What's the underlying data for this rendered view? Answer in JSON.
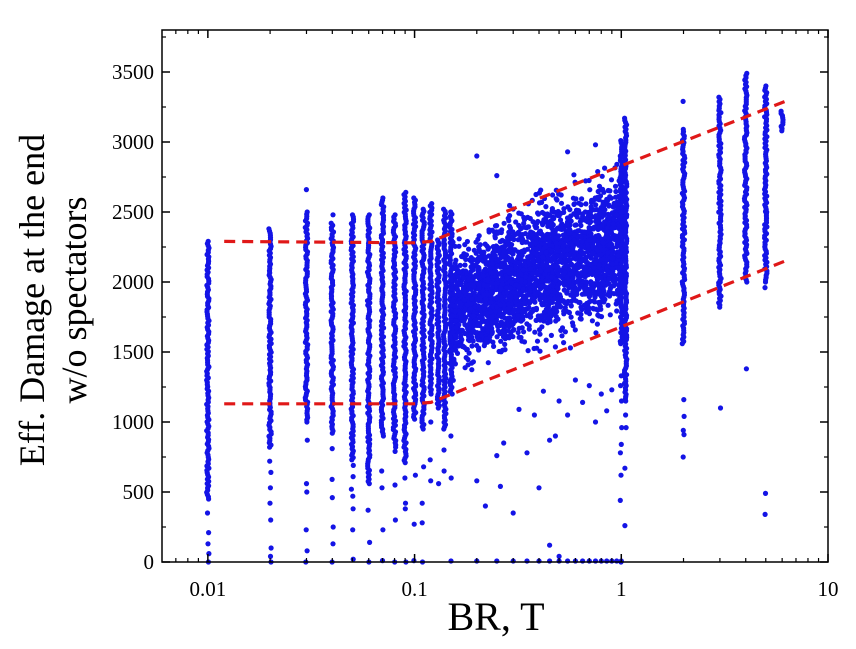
{
  "chart_data": {
    "type": "scatter",
    "title": "",
    "xlabel": "BR, T",
    "ylabel_lines": [
      "Eff. Damage at the end",
      "w/o spectators"
    ],
    "x_scale": "log",
    "xlim": [
      0.006,
      10
    ],
    "ylim": [
      0,
      3800
    ],
    "x_ticks": [
      {
        "value": 0.01,
        "label": "0.01"
      },
      {
        "value": 0.1,
        "label": "0.1"
      },
      {
        "value": 1,
        "label": "1"
      },
      {
        "value": 10,
        "label": "10"
      }
    ],
    "y_ticks": [
      {
        "value": 0,
        "label": "0"
      },
      {
        "value": 500,
        "label": "500"
      },
      {
        "value": 1000,
        "label": "1000"
      },
      {
        "value": 1500,
        "label": "1500"
      },
      {
        "value": 2000,
        "label": "2000"
      },
      {
        "value": 2500,
        "label": "2500"
      },
      {
        "value": 3000,
        "label": "3000"
      },
      {
        "value": 3500,
        "label": "3500"
      }
    ],
    "grid": false,
    "colors": {
      "points": "#1414e6",
      "envelope": "#e01818",
      "axis": "#000000"
    },
    "columns": [
      {
        "x": 0.01,
        "bands": [
          [
            450,
            2290
          ]
        ],
        "extra": [
          0,
          60,
          130,
          210,
          350
        ]
      },
      {
        "x": 0.02,
        "bands": [
          [
            820,
            2380
          ]
        ],
        "extra": [
          0,
          40,
          100,
          300,
          420,
          530,
          640,
          720
        ]
      },
      {
        "x": 0.03,
        "bands": [
          [
            1000,
            2500
          ]
        ],
        "extra": [
          0,
          80,
          230,
          500,
          560,
          870,
          2660
        ]
      },
      {
        "x": 0.04,
        "bands": [
          [
            920,
            2420
          ]
        ],
        "extra": [
          0,
          130,
          250,
          460,
          590,
          810,
          2480
        ]
      },
      {
        "x": 0.05,
        "bands": [
          [
            730,
            2480
          ]
        ],
        "extra": [
          20,
          230,
          380,
          470,
          520,
          610,
          690
        ]
      },
      {
        "x": 0.06,
        "bands": [
          [
            560,
            2480
          ]
        ],
        "extra": [
          0,
          140,
          370
        ]
      },
      {
        "x": 0.07,
        "bands": [
          [
            900,
            2600
          ]
        ],
        "extra": [
          10,
          230,
          530,
          650
        ]
      },
      {
        "x": 0.08,
        "bands": [
          [
            820,
            2480
          ]
        ],
        "extra": [
          0,
          300,
          550,
          790
        ]
      },
      {
        "x": 0.09,
        "bands": [
          [
            710,
            2640
          ]
        ],
        "extra": [
          0,
          380,
          420,
          600
        ]
      },
      {
        "x": 0.1,
        "bands": [
          [
            1020,
            2600
          ]
        ],
        "extra": [
          10,
          270,
          620
        ]
      },
      {
        "x": 0.11,
        "bands": [
          [
            950,
            2520
          ]
        ],
        "extra": [
          0,
          280,
          420,
          680
        ]
      },
      {
        "x": 0.12,
        "bands": [
          [
            1200,
            2560
          ]
        ],
        "extra": [
          580,
          730,
          1000
        ]
      },
      {
        "x": 0.13,
        "bands": [
          [
            1100,
            2300
          ]
        ],
        "extra": [
          560
        ]
      },
      {
        "x": 0.14,
        "bands": [
          [
            950,
            2520
          ]
        ],
        "extra": [
          650,
          800
        ]
      },
      {
        "x": 0.15,
        "bands": [
          [
            1200,
            2500
          ]
        ],
        "extra": [
          600,
          900
        ]
      },
      {
        "x": 1.0,
        "bands": [
          [
            1560,
            3010
          ],
          [
            1980,
            2820
          ]
        ],
        "extra": [
          440,
          620,
          780,
          840,
          960,
          1150,
          1260,
          1330,
          0
        ]
      },
      {
        "x": 1.05,
        "bands": [
          [
            1150,
            3170
          ]
        ],
        "extra": [
          260,
          670,
          960,
          1050,
          1270
        ]
      },
      {
        "x": 2.0,
        "bands": [
          [
            1560,
            3090
          ]
        ],
        "extra": [
          1160,
          1040,
          940,
          910,
          750,
          3290
        ]
      },
      {
        "x": 3.0,
        "bands": [
          [
            1820,
            3320
          ]
        ],
        "extra": [
          2000,
          1100
        ]
      },
      {
        "x": 4.0,
        "bands": [
          [
            2000,
            3490
          ]
        ],
        "extra": [
          1380
        ]
      },
      {
        "x": 5.0,
        "bands": [
          [
            2000,
            3400
          ]
        ],
        "extra": [
          340,
          490,
          1960,
          2500
        ]
      },
      {
        "x": 6.0,
        "bands": [
          [
            3080,
            3220
          ]
        ],
        "extra": []
      }
    ],
    "cloud": {
      "x_range": [
        0.15,
        1.0
      ],
      "upper_envelope": [
        [
          0.15,
          2350
        ],
        [
          0.3,
          2650
        ],
        [
          0.6,
          2860
        ],
        [
          1.0,
          2980
        ]
      ],
      "lower_envelope": [
        [
          0.15,
          1200
        ],
        [
          0.3,
          1350
        ],
        [
          0.6,
          1500
        ],
        [
          1.0,
          1600
        ]
      ],
      "outliers": [
        [
          0.2,
          580
        ],
        [
          0.22,
          400
        ],
        [
          0.25,
          760
        ],
        [
          0.27,
          850
        ],
        [
          0.3,
          350
        ],
        [
          0.32,
          1090
        ],
        [
          0.35,
          780
        ],
        [
          0.38,
          1050
        ],
        [
          0.4,
          530
        ],
        [
          0.42,
          1220
        ],
        [
          0.45,
          870
        ],
        [
          0.48,
          900
        ],
        [
          0.5,
          1150
        ],
        [
          0.55,
          1050
        ],
        [
          0.6,
          1300
        ],
        [
          0.65,
          1140
        ],
        [
          0.7,
          1260
        ],
        [
          0.75,
          1000
        ],
        [
          0.8,
          1200
        ],
        [
          0.85,
          1080
        ],
        [
          0.9,
          1230
        ],
        [
          0.2,
          2900
        ],
        [
          0.25,
          2760
        ],
        [
          0.55,
          2930
        ],
        [
          0.75,
          2980
        ],
        [
          0.45,
          120
        ],
        [
          0.5,
          40
        ],
        [
          0.26,
          540
        ]
      ],
      "zero_line_x": [
        0.15,
        0.2,
        0.25,
        0.3,
        0.35,
        0.4,
        0.45,
        0.5,
        0.55,
        0.6,
        0.65,
        0.7,
        0.75,
        0.8,
        0.85,
        0.9,
        0.95,
        1.0
      ]
    },
    "envelope_lines": {
      "upper": [
        [
          0.012,
          2290
        ],
        [
          0.1,
          2280
        ],
        [
          0.12,
          2290
        ],
        [
          1.0,
          2830
        ],
        [
          6.2,
          3290
        ]
      ],
      "lower": [
        [
          0.012,
          1130
        ],
        [
          0.1,
          1130
        ],
        [
          0.12,
          1140
        ],
        [
          1.0,
          1680
        ],
        [
          6.2,
          2150
        ]
      ]
    }
  }
}
